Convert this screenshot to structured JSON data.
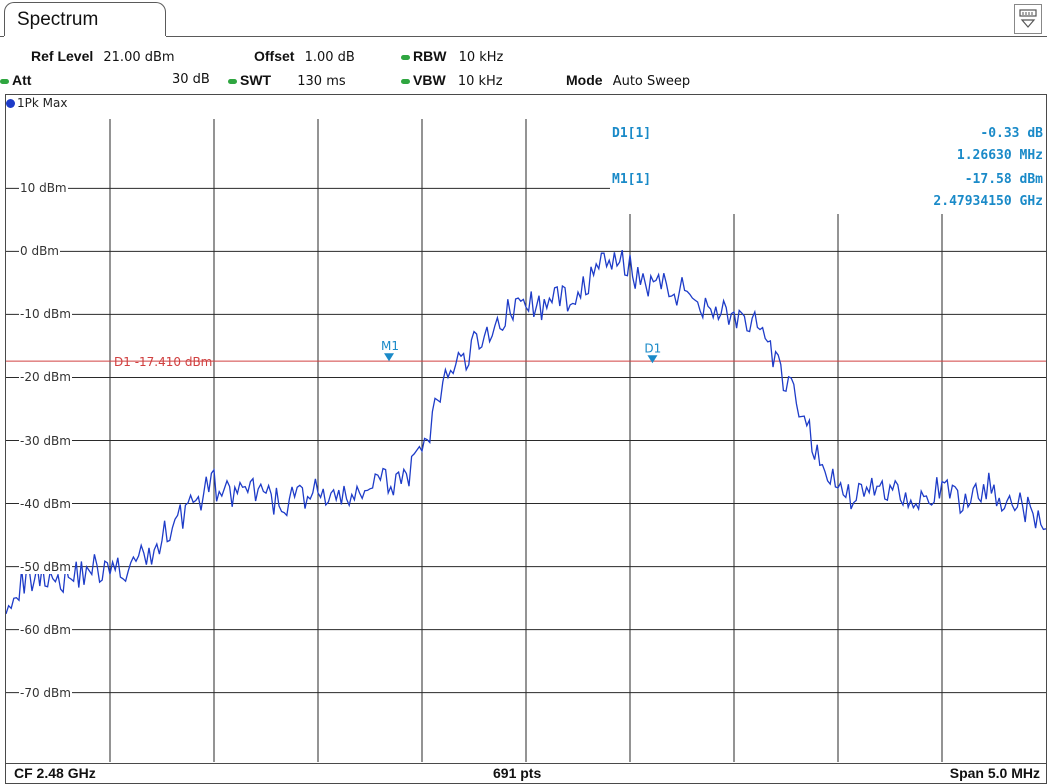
{
  "tab": {
    "title": "Spectrum"
  },
  "settings": {
    "ref_level_label": "Ref Level",
    "ref_level_value": "21.00 dBm",
    "offset_label": "Offset",
    "offset_value": "1.00 dB",
    "rbw_label": "RBW",
    "rbw_value": "10 kHz",
    "att_label": "Att",
    "att_value": "30 dB",
    "swt_label": "SWT",
    "swt_value": "130 ms",
    "vbw_label": "VBW",
    "vbw_value": "10 kHz",
    "mode_label": "Mode",
    "mode_value": "Auto Sweep"
  },
  "trace": {
    "label": "1Pk Max",
    "color": "#1e3cc8"
  },
  "markers": {
    "d1_name": "D1[1]",
    "d1_level": "-0.33 dB",
    "d1_freq": "1.26630 MHz",
    "m1_name": "M1[1]",
    "m1_level": "-17.58 dBm",
    "m1_freq": "2.47934150 GHz",
    "m1_tag": "M1",
    "d1_tag": "D1"
  },
  "display_line": {
    "label": "D1  -17.410 dBm",
    "color": "#d04040"
  },
  "footer": {
    "cf": "CF 2.48 GHz",
    "pts": "691 pts",
    "span": "Span 5.0 MHz"
  },
  "chart_data": {
    "type": "line",
    "y_ticks": [
      "10 dBm",
      "0 dBm",
      "-10 dBm",
      "-20 dBm",
      "-30 dBm",
      "-40 dBm",
      "-50 dBm",
      "-60 dBm",
      "-70 dBm"
    ],
    "ylim": [
      -81,
      21
    ],
    "xlim": [
      2.4775,
      2.4825
    ],
    "x_unit": "GHz",
    "y_unit": "dBm",
    "grid": true,
    "display_line_dbm": -17.41,
    "series": [
      {
        "color": "#1e3cc8",
        "x": [
          2.4775,
          2.4776,
          2.4777,
          2.4778,
          2.4779,
          2.478,
          2.4781,
          2.4782,
          2.4783,
          2.4784,
          2.4785,
          2.4786,
          2.4787,
          2.4788,
          2.4789,
          2.479,
          2.4791,
          2.4792,
          2.4793,
          2.4794,
          2.4795,
          2.4796,
          2.4797,
          2.4798,
          2.4799,
          2.48,
          2.4801,
          2.4802,
          2.4803,
          2.4804,
          2.4805,
          2.4806,
          2.4807,
          2.4808,
          2.4809,
          2.481,
          2.4811,
          2.4812,
          2.4813,
          2.4814,
          2.4815,
          2.4816,
          2.4817,
          2.4818,
          2.4819,
          2.482,
          2.4821,
          2.4822,
          2.4823,
          2.4824,
          2.4825
        ],
        "y": [
          -55,
          -52,
          -51,
          -52,
          -50,
          -51,
          -50,
          -48,
          -43,
          -40,
          -37,
          -39,
          -38,
          -40,
          -39,
          -38,
          -40,
          -38,
          -37,
          -36,
          -33,
          -21,
          -17,
          -13,
          -10,
          -8,
          -9,
          -7,
          -5,
          -1,
          -3,
          -5,
          -6,
          -7,
          -9,
          -10,
          -12,
          -18,
          -24,
          -32,
          -38,
          -39,
          -37,
          -38,
          -39,
          -38,
          -40,
          -37,
          -39,
          -41,
          -44
        ]
      }
    ],
    "markers": [
      {
        "name": "M1",
        "x": 2.4793415,
        "y": -17.58
      },
      {
        "name": "D1",
        "x": 2.4806078,
        "y": -17.91
      }
    ]
  }
}
